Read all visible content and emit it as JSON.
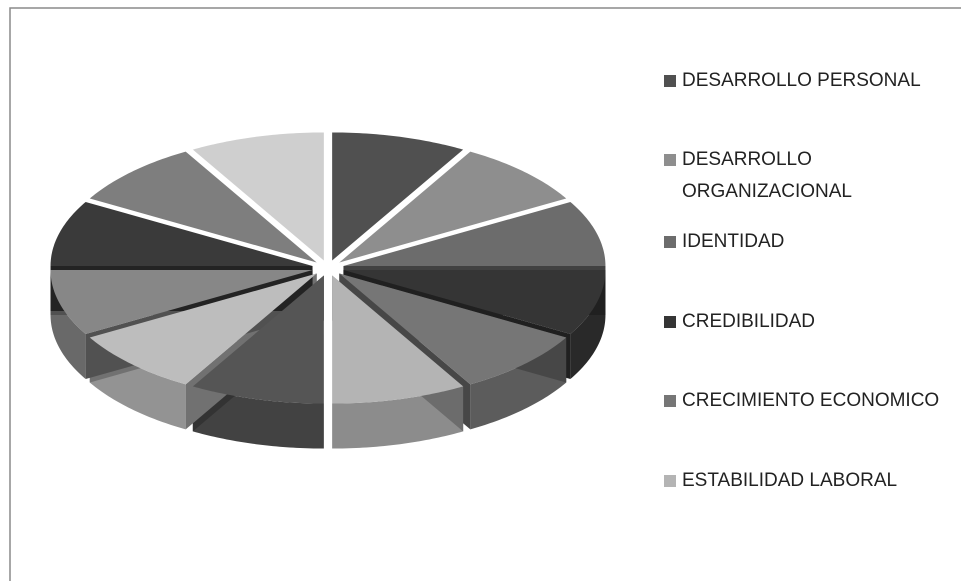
{
  "chart_data": {
    "type": "pie3d",
    "categories": [
      "DESARROLLO PERSONAL",
      "DESARROLLO ORGANIZACIONAL",
      "IDENTIDAD",
      "CREDIBILIDAD",
      "CRECIMIENTO ECONOMICO",
      "ESTABILIDAD LABORAL",
      null,
      null,
      null,
      null,
      null,
      null
    ],
    "values": [
      8,
      8,
      8,
      8,
      8,
      8,
      8,
      8,
      8,
      8,
      8,
      8
    ],
    "colors": [
      "#505050",
      "#8e8e8e",
      "#6c6c6c",
      "#353535",
      "#767676",
      "#b4b4b4",
      "#555555",
      "#bdbdbd",
      "#878787",
      "#3a3a3a",
      "#7e7e7e",
      "#cfcfcf"
    ],
    "legend": "right"
  }
}
